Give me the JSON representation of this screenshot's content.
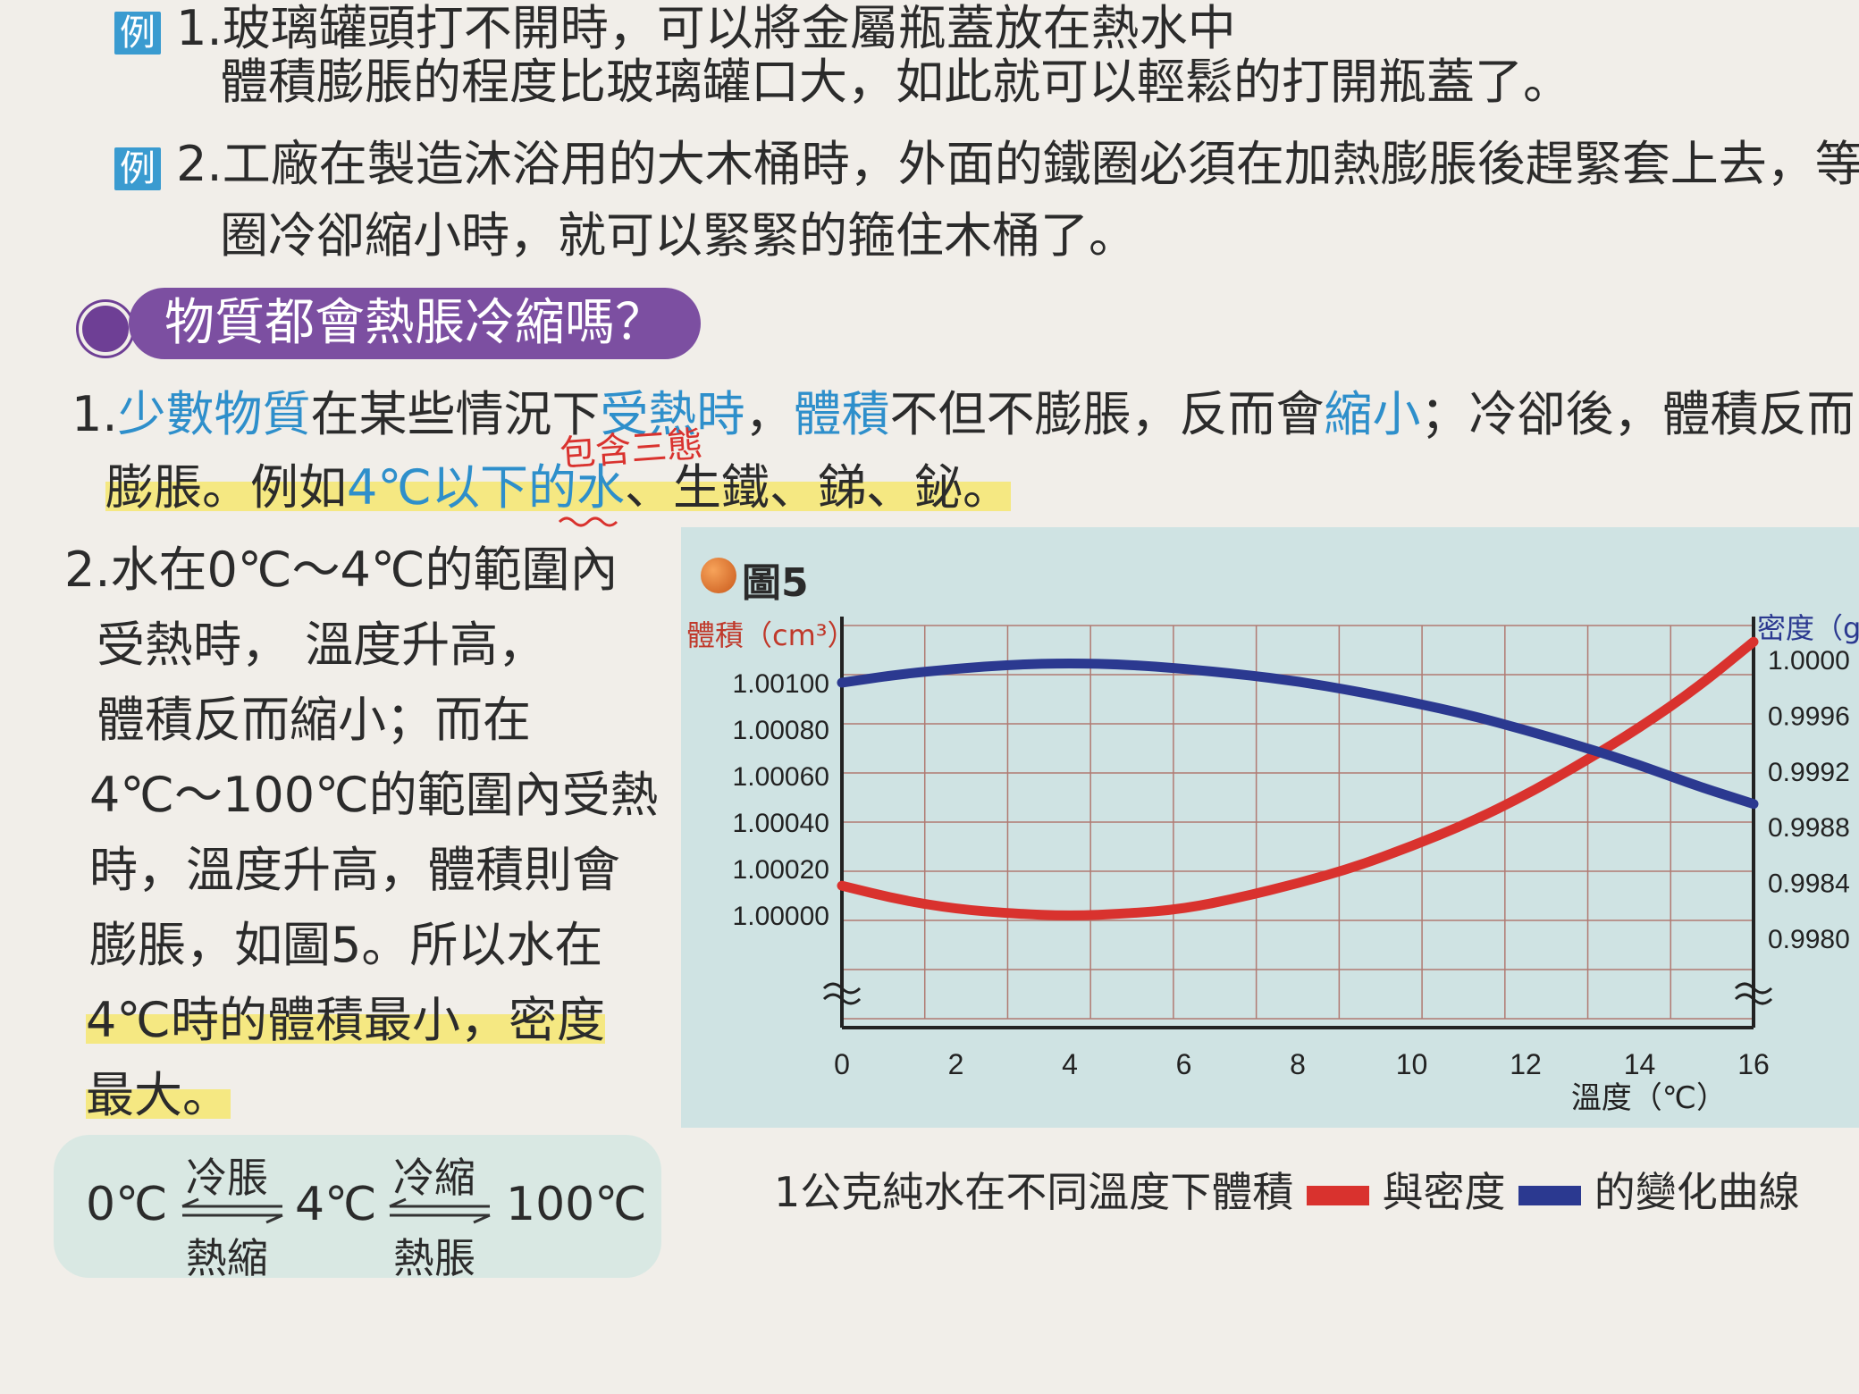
{
  "examples": [
    {
      "tag": "例",
      "line1": "1.玻璃罐頭打不開時，可以將金屬瓶蓋放在熱水中",
      "line2": "體積膨脹的程度比玻璃罐口大，如此就可以輕鬆的打開瓶蓋了。"
    },
    {
      "tag": "例",
      "line1": "2.工廠在製造沐浴用的大木桶時，外面的鐵圈必須在加熱膨脹後趕緊套上去，等",
      "line2": "圈冷卻縮小時，就可以緊緊的箍住木桶了。"
    }
  ],
  "section_title": "物質都會熱脹冷縮嗎？",
  "p1": {
    "num": "1.",
    "a": "少數物質",
    "b": "在某些情況下",
    "c": "受熱時",
    "d": "，",
    "e": "體積",
    "f": "不但不膨脹，反而會",
    "g": "縮小",
    "h": "；冷卻後，體積反而",
    "l2a": "膨脹。例如",
    "l2b": "4℃以下的水",
    "l2c": "、生鐵、銻、鉍。",
    "annotation": "包含三態"
  },
  "p2": [
    "2.水在0℃～4℃的範圍內",
    "受熱時， 溫度升高，",
    "體積反而縮小；而在",
    "4℃～100℃的範圍內受熱",
    "時，溫度升高，體積則會",
    "膨脹，如圖5。所以水在",
    "4℃時的體積最小，密度",
    "最大。"
  ],
  "phase_box": {
    "t0": "0℃",
    "t1": "4℃",
    "t2": "100℃",
    "arrow1_top": "冷脹",
    "arrow1_bottom": "熱縮",
    "arrow2_top": "冷縮",
    "arrow2_bottom": "熱脹"
  },
  "figure": {
    "label": "圖5",
    "caption_a": "1公克純水在不同溫度下體積",
    "caption_b": "與密度",
    "caption_c": "的變化曲線"
  },
  "colors": {
    "volume": "#d9322e",
    "density": "#2b3990",
    "accent": "#2e8fcb",
    "purple": "#7c4fa1"
  },
  "chart_data": {
    "type": "line",
    "xlabel": "溫度（℃）",
    "ylabel_left": "體積（cm³）",
    "ylabel_right": "密度（g/c",
    "x_ticks": [
      "0",
      "2",
      "4",
      "6",
      "8",
      "10",
      "12",
      "14",
      "16"
    ],
    "y_left_ticks": [
      "1.00100",
      "1.00080",
      "1.00060",
      "1.00040",
      "1.00020",
      "1.00000"
    ],
    "y_right_ticks": [
      "1.0000",
      "0.9996",
      "0.9992",
      "0.9988",
      "0.9984",
      "0.9980"
    ],
    "xlim": [
      0,
      16
    ],
    "ylim_left": [
      0.99975,
      1.00125
    ],
    "ylim_right": [
      0.99775,
      1.00025
    ],
    "grid": true,
    "series": [
      {
        "axis": "left",
        "color": "#d9322e",
        "x": [
          0,
          1,
          2,
          3,
          4,
          5,
          6,
          7,
          8,
          9,
          10,
          11,
          12,
          13,
          14,
          15,
          16
        ],
        "y": [
          1.00013,
          1.00007,
          1.00003,
          1.00001,
          1.0,
          1.00001,
          1.00003,
          1.00008,
          1.00014,
          1.00021,
          1.0003,
          1.0004,
          1.00052,
          1.00066,
          1.00081,
          1.00098,
          1.00118
        ]
      },
      {
        "axis": "right",
        "color": "#2b3990",
        "x": [
          0,
          1,
          2,
          3,
          4,
          5,
          6,
          7,
          8,
          9,
          10,
          11,
          12,
          13,
          14,
          15,
          16
        ],
        "y": [
          0.99984,
          0.9999,
          0.99994,
          0.99997,
          0.99998,
          0.99997,
          0.99994,
          0.9999,
          0.99985,
          0.99978,
          0.9997,
          0.99961,
          0.9995,
          0.99938,
          0.99925,
          0.9991,
          0.99897
        ]
      }
    ]
  }
}
